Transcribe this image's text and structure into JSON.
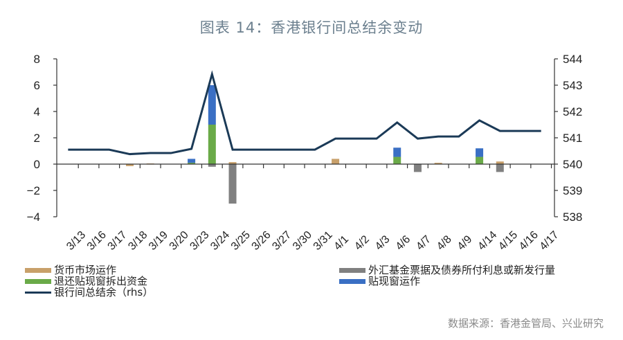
{
  "title": "图表 14：香港银行间总结余变动",
  "source": "数据来源：香港金管局、兴业研究",
  "colors": {
    "money_market": "#c8a06a",
    "fx_fund": "#808080",
    "discount_withdraw": "#6aaa48",
    "discount_window": "#3a6fc4",
    "aggregate_balance": "#1b3a57"
  },
  "legend": {
    "left": [
      {
        "key": "money_market",
        "label": "货币市场运作",
        "kind": "bar"
      },
      {
        "key": "discount_withdraw",
        "label": "退还贴现窗拆出资金",
        "kind": "bar"
      },
      {
        "key": "aggregate_balance",
        "label": "银行间总结余（rhs）",
        "kind": "line"
      }
    ],
    "right": [
      {
        "key": "fx_fund",
        "label": "外汇基金票据及债券所付利息或新发行量",
        "kind": "bar"
      },
      {
        "key": "discount_window",
        "label": "贴现窗运作",
        "kind": "bar"
      }
    ]
  },
  "chart_data": {
    "type": "bar",
    "title": "图表 14：香港银行间总结余变动",
    "xlabel": "",
    "ylabel": "",
    "ylim": [
      -4,
      8
    ],
    "yticks": [
      -4,
      -2,
      0,
      2,
      4,
      6,
      8
    ],
    "y2lim": [
      538,
      544
    ],
    "y2ticks": [
      538,
      539,
      540,
      541,
      542,
      543,
      544
    ],
    "grid": false,
    "legend_position": "bottom",
    "categories": [
      "3/13",
      "3/16",
      "3/17",
      "3/18",
      "3/19",
      "3/20",
      "3/23",
      "3/24",
      "3/25",
      "3/26",
      "3/27",
      "3/30",
      "3/31",
      "4/1",
      "4/2",
      "4/3",
      "4/6",
      "4/7",
      "4/8",
      "4/9",
      "4/14",
      "4/15",
      "4/16",
      "4/17"
    ],
    "series": [
      {
        "name": "货币市场运作",
        "key": "money_market",
        "type": "bar",
        "axis": "left",
        "values": [
          0,
          0,
          0,
          -0.15,
          0.05,
          0,
          0,
          0,
          0.15,
          0,
          0,
          0,
          0,
          0.4,
          0,
          0,
          0,
          0,
          0.1,
          0,
          0,
          0.2,
          0,
          0
        ]
      },
      {
        "name": "外汇基金票据及债券所付利息或新发行量",
        "key": "fx_fund",
        "type": "bar",
        "axis": "left",
        "values": [
          0,
          0,
          0,
          0,
          0,
          0,
          0,
          -0.2,
          -3.0,
          0,
          0,
          0,
          0,
          0,
          0,
          0,
          0,
          -0.6,
          0,
          0,
          0,
          -0.6,
          0,
          0
        ]
      },
      {
        "name": "退还贴现窗拆出资金",
        "key": "discount_withdraw",
        "type": "bar",
        "axis": "left",
        "values": [
          0,
          0,
          0,
          0,
          0,
          0,
          0.1,
          3.0,
          0,
          0,
          0,
          0,
          0,
          0,
          0,
          0,
          0.55,
          0,
          0,
          0,
          0.55,
          0,
          0,
          0
        ]
      },
      {
        "name": "贴现窗运作",
        "key": "discount_window",
        "type": "bar",
        "axis": "left",
        "values": [
          0,
          0,
          0,
          0,
          0,
          0,
          0.3,
          3.0,
          0,
          0,
          0,
          0,
          0,
          0,
          0,
          0,
          0.7,
          0,
          0,
          0,
          0.65,
          0,
          0,
          0
        ]
      },
      {
        "name": "银行间总结余（rhs）",
        "key": "aggregate_balance",
        "type": "line",
        "axis": "right",
        "values": [
          540.55,
          540.55,
          540.55,
          540.38,
          540.42,
          540.42,
          540.58,
          543.42,
          540.55,
          540.55,
          540.55,
          540.55,
          540.55,
          540.97,
          540.97,
          540.97,
          541.58,
          540.97,
          541.05,
          541.05,
          541.66,
          541.26,
          541.26,
          541.26
        ]
      }
    ]
  }
}
